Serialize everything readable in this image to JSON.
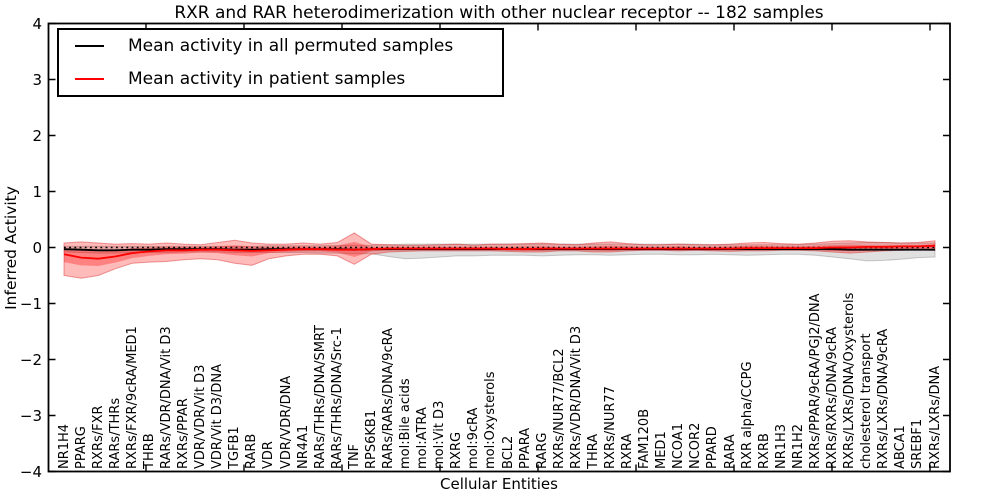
{
  "figure": {
    "title": "RXR and RAR heterodimerization with other nuclear receptor -- 182 samples",
    "xlabel": "Cellular Entities",
    "ylabel": "Inferred Activity",
    "y_ticks": [
      "4",
      "3",
      "2",
      "1",
      "0",
      "−1",
      "−2",
      "−3",
      "−4"
    ],
    "background_color": "#ffffff",
    "axis_color": "#000000"
  },
  "chart_data": {
    "type": "line",
    "title": "RXR and RAR heterodimerization with other nuclear receptor -- 182 samples",
    "xlabel": "Cellular Entities",
    "ylabel": "Inferred Activity",
    "ylim": [
      -4,
      4
    ],
    "grid": false,
    "legend_position": "upper left",
    "categories": [
      "NR1H4",
      "PPARG",
      "RXRs/FXR",
      "RARs/THRs",
      "RXRs/FXR/9cRA/MED1",
      "THRB",
      "RARs/VDR/DNA/Vit D3",
      "RXRs/PPAR",
      "VDR/VDR/Vit D3",
      "VDR/Vit D3/DNA",
      "TGFB1",
      "RARB",
      "VDR",
      "VDR/VDR/DNA",
      "NR4A1",
      "RARs/THRs/DNA/SMRT",
      "RARs/THRs/DNA/Src-1",
      "TNF",
      "RPS6KB1",
      "RARs/RARs/DNA/9cRA",
      "mol:Bile acids",
      "mol:ATRA",
      "mol:Vit D3",
      "RXRG",
      "mol:9cRA",
      "mol:Oxysterols",
      "BCL2",
      "PPARA",
      "RARG",
      "RXRs/NUR77/BCL2",
      "RXRs/VDR/DNA/Vit D3",
      "THRA",
      "RXRs/NUR77",
      "RXRA",
      "FAM120B",
      "MED1",
      "NCOA1",
      "NCOR2",
      "PPARD",
      "RARA",
      "RXR alpha/CCPG",
      "RXRB",
      "NR1H3",
      "NR1H2",
      "RXRs/PPAR/9cRA/PGJ2/DNA",
      "RXRs/RXRs/DNA/9cRA",
      "RXRs/LXRs/DNA/Oxysterols",
      "cholesterol transport",
      "RXRs/LXRs/DNA/9cRA",
      "ABCA1",
      "SREBF1",
      "RXRs/LXRs/DNA"
    ],
    "series": [
      {
        "name": "Mean activity in all permuted samples",
        "color": "#000000",
        "values": [
          -0.03,
          -0.04,
          -0.05,
          -0.05,
          -0.04,
          -0.04,
          -0.03,
          -0.03,
          -0.03,
          -0.03,
          -0.04,
          -0.04,
          -0.03,
          -0.03,
          -0.03,
          -0.03,
          -0.03,
          -0.04,
          -0.03,
          -0.03,
          -0.03,
          -0.03,
          -0.03,
          -0.03,
          -0.03,
          -0.03,
          -0.03,
          -0.03,
          -0.03,
          -0.03,
          -0.03,
          -0.03,
          -0.03,
          -0.03,
          -0.03,
          -0.03,
          -0.03,
          -0.03,
          -0.03,
          -0.03,
          -0.03,
          -0.03,
          -0.03,
          -0.03,
          -0.03,
          -0.03,
          -0.04,
          -0.04,
          -0.04,
          -0.04,
          -0.04,
          -0.04
        ],
        "band_upper": [
          0.02,
          0.02,
          0.02,
          0.02,
          0.02,
          0.02,
          0.02,
          0.02,
          0.02,
          0.02,
          0.02,
          0.02,
          0.03,
          0.03,
          0.03,
          0.03,
          0.04,
          0.04,
          0.04,
          0.05,
          0.06,
          0.06,
          0.06,
          0.06,
          0.06,
          0.06,
          0.06,
          0.06,
          0.06,
          0.06,
          0.06,
          0.06,
          0.06,
          0.06,
          0.06,
          0.06,
          0.06,
          0.06,
          0.05,
          0.05,
          0.05,
          0.05,
          0.05,
          0.05,
          0.06,
          0.07,
          0.08,
          0.09,
          0.09,
          0.08,
          0.08,
          0.08
        ],
        "band_lower": [
          -0.08,
          -0.09,
          -0.1,
          -0.1,
          -0.09,
          -0.09,
          -0.09,
          -0.08,
          -0.08,
          -0.08,
          -0.09,
          -0.09,
          -0.09,
          -0.09,
          -0.09,
          -0.1,
          -0.1,
          -0.11,
          -0.11,
          -0.16,
          -0.2,
          -0.19,
          -0.17,
          -0.15,
          -0.15,
          -0.14,
          -0.14,
          -0.14,
          -0.15,
          -0.14,
          -0.13,
          -0.13,
          -0.14,
          -0.13,
          -0.12,
          -0.12,
          -0.13,
          -0.13,
          -0.12,
          -0.13,
          -0.14,
          -0.13,
          -0.12,
          -0.12,
          -0.14,
          -0.17,
          -0.2,
          -0.24,
          -0.23,
          -0.21,
          -0.18,
          -0.17
        ]
      },
      {
        "name": "Mean activity in patient samples",
        "color": "#ff0000",
        "values": [
          -0.12,
          -0.18,
          -0.2,
          -0.16,
          -0.1,
          -0.07,
          -0.05,
          -0.05,
          -0.04,
          -0.04,
          -0.05,
          -0.06,
          -0.05,
          -0.04,
          -0.03,
          -0.03,
          -0.04,
          -0.04,
          -0.03,
          -0.02,
          -0.02,
          -0.02,
          -0.02,
          -0.02,
          -0.02,
          -0.02,
          -0.03,
          -0.03,
          -0.02,
          -0.02,
          -0.02,
          -0.02,
          -0.02,
          -0.02,
          -0.02,
          -0.02,
          -0.02,
          -0.02,
          -0.02,
          -0.02,
          -0.01,
          -0.01,
          -0.01,
          -0.01,
          -0.01,
          0.0,
          0.0,
          0.01,
          0.01,
          0.02,
          0.02,
          0.03
        ],
        "band_upper": [
          0.08,
          0.1,
          0.08,
          0.06,
          0.07,
          0.06,
          0.08,
          0.06,
          0.05,
          0.09,
          0.13,
          0.08,
          0.06,
          0.06,
          0.08,
          0.06,
          0.09,
          0.26,
          0.06,
          0.05,
          0.04,
          0.04,
          0.05,
          0.06,
          0.04,
          0.06,
          0.06,
          0.07,
          0.08,
          0.06,
          0.05,
          0.08,
          0.1,
          0.07,
          0.05,
          0.05,
          0.06,
          0.05,
          0.05,
          0.06,
          0.08,
          0.09,
          0.07,
          0.06,
          0.08,
          0.11,
          0.12,
          0.1,
          0.09,
          0.08,
          0.09,
          0.12
        ],
        "band_lower": [
          -0.5,
          -0.55,
          -0.5,
          -0.38,
          -0.28,
          -0.26,
          -0.25,
          -0.22,
          -0.2,
          -0.22,
          -0.28,
          -0.32,
          -0.2,
          -0.15,
          -0.12,
          -0.12,
          -0.15,
          -0.3,
          -0.12,
          -0.08,
          -0.07,
          -0.06,
          -0.06,
          -0.06,
          -0.06,
          -0.06,
          -0.07,
          -0.08,
          -0.08,
          -0.06,
          -0.06,
          -0.08,
          -0.08,
          -0.06,
          -0.05,
          -0.05,
          -0.06,
          -0.05,
          -0.06,
          -0.07,
          -0.06,
          -0.06,
          -0.05,
          -0.05,
          -0.06,
          -0.08,
          -0.1,
          -0.08,
          -0.06,
          -0.05,
          -0.04,
          -0.05
        ],
        "inner_band_upper": [
          -0.01,
          -0.04,
          -0.07,
          -0.05,
          -0.01,
          0.0,
          0.01,
          0.01,
          0.01,
          0.02,
          0.04,
          0.02,
          0.01,
          0.01,
          0.02,
          0.01,
          0.03,
          0.1,
          0.01,
          0.01,
          0.01,
          0.01,
          0.01,
          0.01,
          0.01,
          0.01,
          0.01,
          0.02,
          0.02,
          0.01,
          0.01,
          0.02,
          0.03,
          0.02,
          0.01,
          0.01,
          0.02,
          0.01,
          0.01,
          0.02,
          0.03,
          0.03,
          0.02,
          0.02,
          0.03,
          0.04,
          0.05,
          0.04,
          0.04,
          0.04,
          0.04,
          0.06
        ],
        "inner_band_lower": [
          -0.26,
          -0.32,
          -0.33,
          -0.27,
          -0.19,
          -0.15,
          -0.12,
          -0.11,
          -0.09,
          -0.1,
          -0.14,
          -0.16,
          -0.1,
          -0.08,
          -0.07,
          -0.07,
          -0.09,
          -0.17,
          -0.07,
          -0.05,
          -0.04,
          -0.04,
          -0.04,
          -0.04,
          -0.04,
          -0.04,
          -0.05,
          -0.06,
          -0.06,
          -0.04,
          -0.04,
          -0.05,
          -0.06,
          -0.04,
          -0.03,
          -0.03,
          -0.04,
          -0.03,
          -0.04,
          -0.04,
          -0.04,
          -0.04,
          -0.03,
          -0.03,
          -0.04,
          -0.06,
          -0.07,
          -0.06,
          -0.05,
          -0.03,
          -0.02,
          -0.02
        ]
      }
    ],
    "reference_line": {
      "y": 0,
      "style": "dotted",
      "color": "#000000"
    }
  }
}
